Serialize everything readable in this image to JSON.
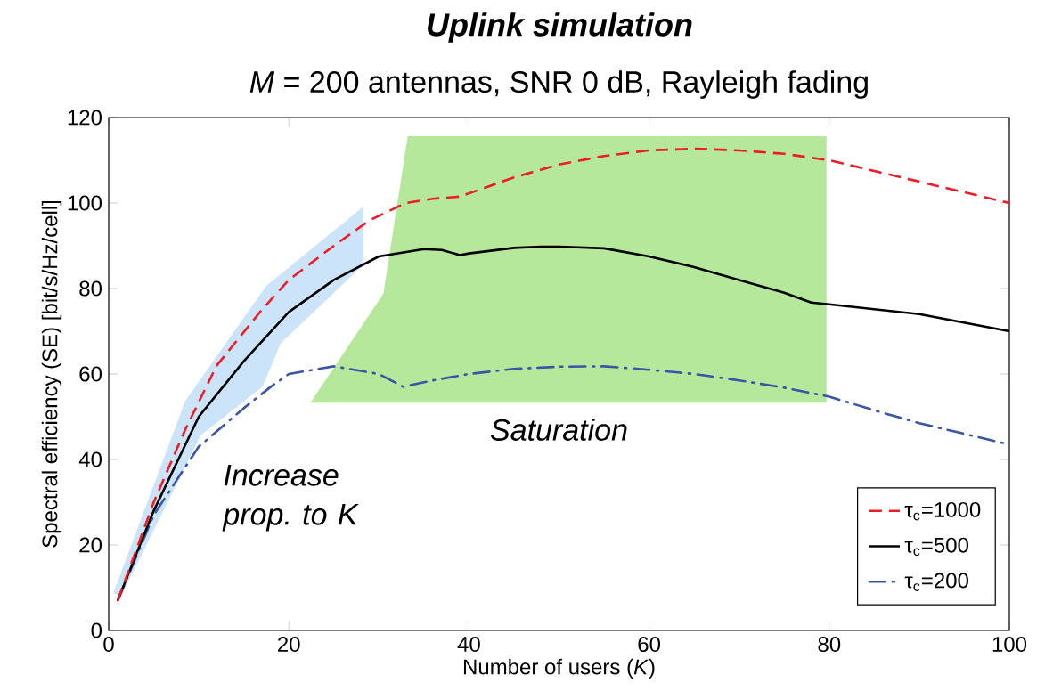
{
  "chart_data": {
    "type": "line",
    "title": "Uplink simulation",
    "subtitle": "*M* = 200 antennas, SNR 0 dB, Rayleigh fading",
    "xlabel": "Number of users (*K*)",
    "ylabel": "Spectral efficiency (SE) [bit/s/Hz/cell]",
    "xlim": [
      0,
      100
    ],
    "ylim": [
      0,
      120
    ],
    "xticks": [
      0,
      20,
      40,
      60,
      80,
      100
    ],
    "yticks": [
      0,
      20,
      40,
      60,
      80,
      100,
      120
    ],
    "grid": false,
    "legend": "bottom right",
    "marker": "none",
    "annotations": [
      "Increase prop. to *K*",
      "Saturation"
    ],
    "series": [
      {
        "name": "τ$_{c}$=1000",
        "color": "#ee1c25",
        "line_style": "dashed",
        "x": [
          1,
          5,
          8.5,
          12,
          17,
          20,
          25,
          29,
          33,
          36,
          39,
          45,
          50,
          55,
          60,
          65,
          70,
          75,
          80,
          85,
          90,
          95,
          100
        ],
        "values": [
          7,
          30,
          47,
          62,
          75,
          82,
          90,
          96,
          100,
          101,
          101.5,
          106,
          109,
          111,
          112.3,
          112.7,
          112.3,
          111.5,
          110,
          107.5,
          105,
          102.5,
          100
        ]
      },
      {
        "name": "τ$_{c}$=500",
        "color": "#000000",
        "line_style": "solid",
        "x": [
          1,
          5,
          10,
          15,
          20,
          25,
          30,
          35,
          37,
          39,
          40,
          45,
          48,
          50,
          55,
          60,
          65,
          70,
          75,
          78,
          80,
          90,
          100
        ],
        "values": [
          7,
          28,
          50,
          63,
          74.5,
          82,
          87.5,
          89.2,
          89,
          87.8,
          88.2,
          89.5,
          89.8,
          89.8,
          89.4,
          87.5,
          85,
          82,
          79,
          76.7,
          76.3,
          74,
          70
        ]
      },
      {
        "name": "τ$_{c}$=200",
        "color": "#3a55a6",
        "line_style": "dashdot",
        "x": [
          1,
          5,
          10,
          15,
          18,
          20,
          25,
          30,
          32.7,
          36,
          40,
          45,
          50,
          55,
          60,
          65,
          70,
          75,
          80,
          85,
          90,
          95,
          100
        ],
        "values": [
          7,
          27,
          43,
          52,
          57,
          60,
          61.8,
          60,
          57,
          58.5,
          60,
          61.2,
          61.7,
          61.8,
          61,
          60,
          58.5,
          56.8,
          54.7,
          51.5,
          48.5,
          46,
          43.5
        ]
      }
    ]
  }
}
